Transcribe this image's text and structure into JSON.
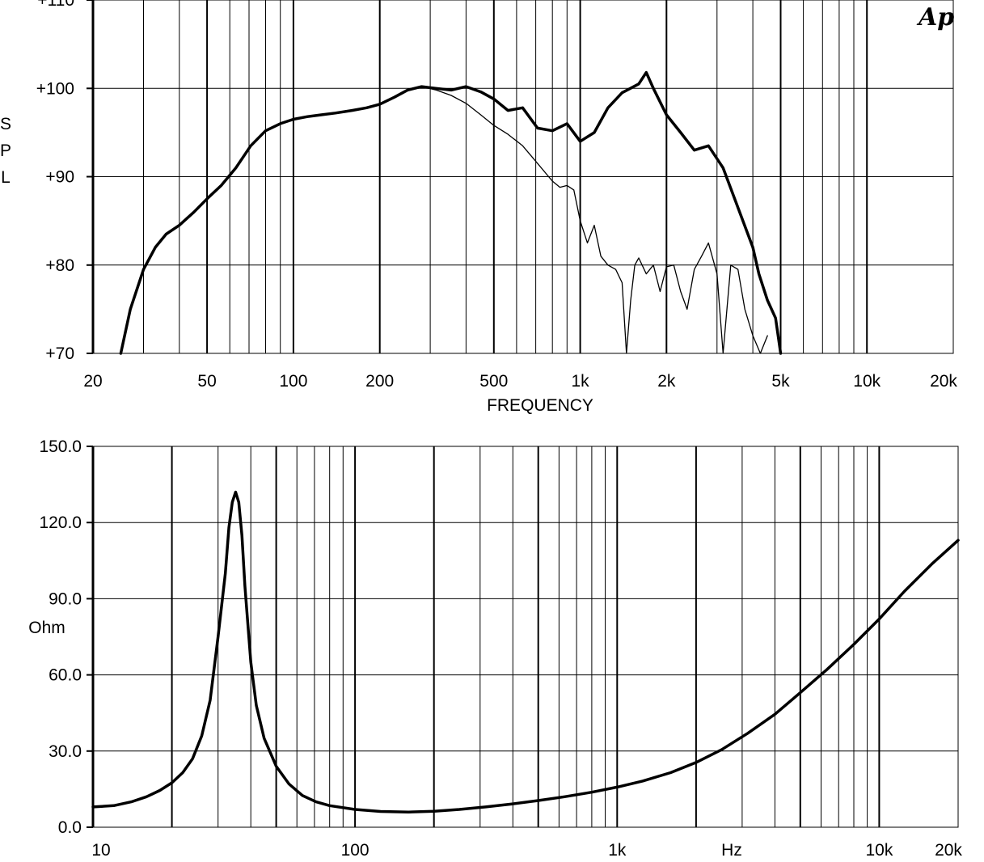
{
  "logo": "Ap",
  "chart_data": [
    {
      "type": "line",
      "ylabel": "SPL",
      "xlabel": "FREQUENCY",
      "x_scale": "log",
      "xlim": [
        20,
        20000
      ],
      "ylim": [
        70,
        110
      ],
      "grid": true,
      "x_ticks": [
        {
          "value": 20,
          "label": "20"
        },
        {
          "value": 50,
          "label": "50"
        },
        {
          "value": 100,
          "label": "100"
        },
        {
          "value": 200,
          "label": "200"
        },
        {
          "value": 500,
          "label": "500"
        },
        {
          "value": 1000,
          "label": "1k"
        },
        {
          "value": 2000,
          "label": "2k"
        },
        {
          "value": 5000,
          "label": "5k"
        },
        {
          "value": 10000,
          "label": "10k"
        },
        {
          "value": 20000,
          "label": "20k"
        }
      ],
      "y_ticks": [
        {
          "value": 70,
          "label": "+70"
        },
        {
          "value": 80,
          "label": "+80"
        },
        {
          "value": 90,
          "label": "+90"
        },
        {
          "value": 100,
          "label": "+100"
        },
        {
          "value": 110,
          "label": "+110"
        }
      ],
      "series": [
        {
          "style": "thick",
          "x": [
            25,
            27,
            30,
            33,
            36,
            40,
            45,
            50,
            56,
            63,
            71,
            80,
            90,
            100,
            112,
            125,
            140,
            160,
            180,
            200,
            225,
            250,
            280,
            315,
            355,
            400,
            450,
            500,
            560,
            630,
            710,
            800,
            900,
            1000,
            1120,
            1250,
            1400,
            1600,
            1700,
            1800,
            2000,
            2240,
            2500,
            2800,
            3150,
            3550,
            4000,
            4200,
            4500,
            4800,
            5000
          ],
          "y": [
            70,
            75,
            79.5,
            82,
            83.5,
            84.5,
            86,
            87.5,
            89,
            91,
            93.5,
            95.2,
            96,
            96.5,
            96.8,
            97,
            97.2,
            97.5,
            97.8,
            98.2,
            99,
            99.8,
            100.2,
            100,
            99.8,
            100.2,
            99.6,
            98.8,
            97.5,
            97.8,
            95.5,
            95.2,
            96,
            94,
            95,
            97.8,
            99.5,
            100.5,
            101.8,
            100,
            97,
            95,
            93,
            93.5,
            91,
            86.5,
            82,
            79,
            76,
            74,
            70
          ]
        },
        {
          "style": "thin",
          "x": [
            280,
            315,
            355,
            400,
            450,
            500,
            560,
            630,
            710,
            800,
            850,
            900,
            950,
            1000,
            1060,
            1120,
            1180,
            1250,
            1330,
            1400,
            1450,
            1500,
            1550,
            1600,
            1700,
            1800,
            1900,
            2000,
            2120,
            2240,
            2360,
            2500,
            2650,
            2800,
            3000,
            3150,
            3350,
            3550,
            3750,
            4000,
            4250,
            4500
          ],
          "y": [
            100.2,
            99.8,
            99.2,
            98.3,
            97,
            95.8,
            94.8,
            93.5,
            91.5,
            89.5,
            88.8,
            89,
            88.5,
            85,
            82.5,
            84.5,
            81,
            80,
            79.5,
            78,
            70,
            76,
            80,
            80.8,
            79,
            80,
            77,
            79.8,
            80,
            77,
            75,
            79.5,
            81,
            82.5,
            79,
            70,
            80,
            79.5,
            75,
            72,
            70,
            72
          ]
        }
      ]
    },
    {
      "type": "line",
      "ylabel": "Ohm",
      "xlabel": "Hz",
      "x_scale": "log",
      "xlim": [
        10,
        20000
      ],
      "ylim": [
        0,
        150
      ],
      "grid": true,
      "x_ticks": [
        {
          "value": 10,
          "label": "10"
        },
        {
          "value": 100,
          "label": "100"
        },
        {
          "value": 1000,
          "label": "1k"
        },
        {
          "value": 10000,
          "label": "10k"
        },
        {
          "value": 20000,
          "label": "20k"
        }
      ],
      "y_ticks": [
        {
          "value": 0,
          "label": "0.0"
        },
        {
          "value": 30,
          "label": "30.0"
        },
        {
          "value": 60,
          "label": "60.0"
        },
        {
          "value": 90,
          "label": "90.0"
        },
        {
          "value": 120,
          "label": "120.0"
        },
        {
          "value": 150,
          "label": "150.0"
        }
      ],
      "series": [
        {
          "style": "thick",
          "x": [
            10,
            12,
            14,
            16,
            18,
            20,
            22,
            24,
            26,
            28,
            30,
            32,
            33,
            34,
            35,
            36,
            37,
            38,
            40,
            42,
            45,
            50,
            56,
            63,
            71,
            80,
            100,
            125,
            160,
            200,
            250,
            315,
            400,
            500,
            630,
            800,
            1000,
            1250,
            1600,
            2000,
            2500,
            3150,
            4000,
            5000,
            6300,
            8000,
            10000,
            12500,
            16000,
            20000
          ],
          "y": [
            8,
            8.5,
            10,
            12,
            14.5,
            17.5,
            21.5,
            27,
            36,
            50,
            75,
            100,
            118,
            128,
            132,
            128,
            115,
            95,
            65,
            48,
            35,
            24,
            17,
            12.5,
            10,
            8.5,
            7,
            6.2,
            6,
            6.3,
            7,
            8,
            9.2,
            10.5,
            12,
            13.8,
            15.8,
            18.2,
            21.5,
            25.5,
            30.5,
            37,
            44.5,
            53,
            62,
            72,
            82,
            93,
            104,
            113
          ]
        }
      ]
    }
  ]
}
